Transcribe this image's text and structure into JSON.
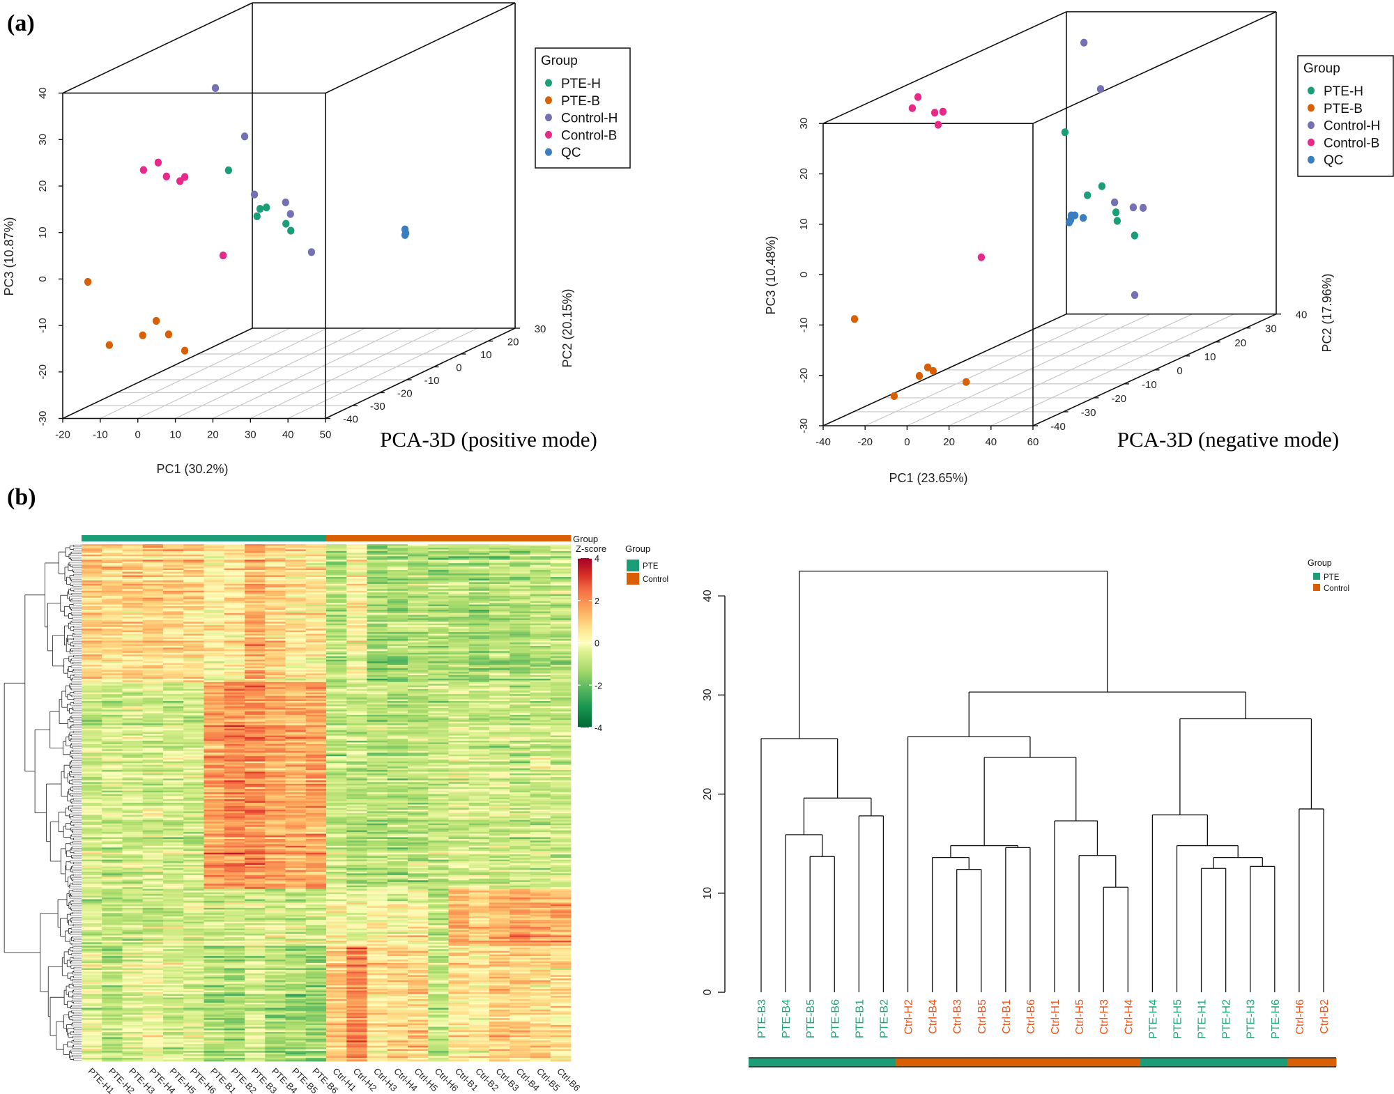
{
  "panel_labels": {
    "a": "(a)",
    "b": "(b)"
  },
  "colors": {
    "PTE-H": "#1b9e77",
    "PTE-B": "#d95f02",
    "Control-H": "#7570b3",
    "Control-B": "#e7298a",
    "QC": "#3b7ec0",
    "PTE": "#1b9e77",
    "Control": "#d95f02",
    "PTE_label": "#1fa57a",
    "Control_label": "#e8561c"
  },
  "chart_data": [
    {
      "type": "scatter3d",
      "title": "PCA-3D (positive mode)",
      "xlabel": "PC1 (30.2%)",
      "ylabel": "PC2 (20.15%)",
      "zlabel": "PC3 (10.87%)",
      "xlim": [
        -20,
        50
      ],
      "ylim": [
        -40,
        30
      ],
      "zlim": [
        -30,
        40
      ],
      "xticks": [
        -20,
        -10,
        0,
        10,
        20,
        30,
        40,
        50
      ],
      "yticks": [
        -40,
        -30,
        -20,
        -10,
        0,
        10,
        20,
        30
      ],
      "zticks": [
        -30,
        -20,
        -10,
        0,
        10,
        20,
        30,
        40
      ],
      "grid": "floor",
      "legend": {
        "title": "Group",
        "position": "top-right"
      },
      "series": [
        {
          "name": "PTE-H",
          "points": [
            [
              -4.7,
              0,
              12.3
            ],
            [
              3.7,
              0,
              4.0
            ],
            [
              5.4,
              0,
              4.3
            ],
            [
              2.9,
              0,
              2.4
            ],
            [
              10.6,
              0,
              0.8
            ],
            [
              11.9,
              0,
              -0.7
            ]
          ]
        },
        {
          "name": "PTE-B",
          "points": [
            [
              -16.9,
              -35,
              -2.0
            ],
            [
              -11.2,
              -35,
              -15.6
            ],
            [
              -2.3,
              -35,
              -13.5
            ],
            [
              1.3,
              -35,
              -10.4
            ],
            [
              4.6,
              -35,
              -13.3
            ],
            [
              8.9,
              -35,
              -16.8
            ]
          ]
        },
        {
          "name": "Control-H",
          "points": [
            [
              -11.8,
              5,
              28.6
            ],
            [
              -4.0,
              5,
              18.2
            ],
            [
              -1.4,
              5,
              5.7
            ],
            [
              6.9,
              5,
              4.0
            ],
            [
              8.2,
              5,
              1.5
            ],
            [
              13.8,
              5,
              -6.7
            ]
          ]
        },
        {
          "name": "Control-B",
          "points": [
            [
              -9.3,
              -25,
              19.3
            ],
            [
              -5.4,
              -25,
              20.9
            ],
            [
              -3.2,
              -25,
              17.9
            ],
            [
              0.4,
              -25,
              16.9
            ],
            [
              1.7,
              -25,
              17.8
            ],
            [
              11.9,
              -25,
              0.9
            ]
          ]
        },
        {
          "name": "QC",
          "points": [
            [
              35.1,
              10,
              -3.2
            ],
            [
              35.3,
              10,
              -4.0
            ],
            [
              35.1,
              10,
              -4.4
            ]
          ]
        }
      ]
    },
    {
      "type": "scatter3d",
      "title": "PCA-3D (negative mode)",
      "xlabel": "PC1 (23.65%)",
      "ylabel": "PC2 (17.96%)",
      "zlabel": "PC3 (10.48%)",
      "xlim": [
        -40,
        60
      ],
      "ylim": [
        -40,
        40
      ],
      "zlim": [
        -30,
        30
      ],
      "xticks": [
        -40,
        -20,
        0,
        20,
        40,
        60
      ],
      "yticks": [
        -40,
        -30,
        -20,
        -10,
        0,
        10,
        20,
        30,
        40
      ],
      "zticks": [
        -30,
        -20,
        -10,
        0,
        10,
        20,
        30
      ],
      "grid": "floor",
      "legend": {
        "title": "Group",
        "position": "top-right"
      },
      "series": [
        {
          "name": "PTE-H",
          "points": [
            [
              2.8,
              10,
              14.4
            ],
            [
              20.4,
              10,
              3.7
            ],
            [
              13.5,
              10,
              1.9
            ],
            [
              27.1,
              10,
              -1.5
            ],
            [
              27.7,
              10,
              -3.2
            ],
            [
              36.0,
              10,
              -6.1
            ]
          ]
        },
        {
          "name": "PTE-B",
          "points": [
            [
              -32.3,
              -35,
              -10.2
            ],
            [
              2.6,
              -35,
              -19.8
            ],
            [
              5.2,
              -35,
              -20.5
            ],
            [
              -1.4,
              -35,
              -21.5
            ],
            [
              20.9,
              -35,
              -22.7
            ],
            [
              -13.4,
              -35,
              -25.5
            ]
          ]
        },
        {
          "name": "Control-H",
          "points": [
            [
              4.6,
              15,
              30.8
            ],
            [
              12.5,
              15,
              21.6
            ],
            [
              19.2,
              15,
              -0.9
            ],
            [
              28.1,
              15,
              -1.9
            ],
            [
              32.8,
              15,
              -2.0
            ],
            [
              28.8,
              15,
              -19.3
            ]
          ]
        },
        {
          "name": "Control-B",
          "points": [
            [
              -23.8,
              -20,
              29.7
            ],
            [
              -26.5,
              -20,
              27.5
            ],
            [
              -15.8,
              -20,
              26.6
            ],
            [
              -11.9,
              -20,
              26.8
            ],
            [
              -14.2,
              -20,
              24.2
            ],
            [
              6.4,
              -20,
              -2.1
            ]
          ]
        },
        {
          "name": "QC",
          "points": [
            [
              5.8,
              10,
              -2.1
            ],
            [
              7.5,
              10,
              -2.1
            ],
            [
              4.8,
              10,
              -3.5
            ],
            [
              11.5,
              10,
              -2.6
            ],
            [
              5.5,
              10,
              -3.0
            ]
          ]
        }
      ]
    },
    {
      "type": "heatmap",
      "columns": [
        "PTE-H1",
        "PTE-H2",
        "PTE-H3",
        "PTE-H4",
        "PTE-H5",
        "PTE-H6",
        "PTE-B1",
        "PTE-B2",
        "PTE-B3",
        "PTE-B4",
        "PTE-B5",
        "PTE-B6",
        "Ctrl-H1",
        "Ctrl-H2",
        "Ctrl-H3",
        "Ctrl-H4",
        "Ctrl-H5",
        "Ctrl-H6",
        "Ctrl-B1",
        "Ctrl-B2",
        "Ctrl-B3",
        "Ctrl-B4",
        "Ctrl-B5",
        "Ctrl-B6"
      ],
      "column_groups": [
        "PTE",
        "PTE",
        "PTE",
        "PTE",
        "PTE",
        "PTE",
        "PTE",
        "PTE",
        "PTE",
        "PTE",
        "PTE",
        "PTE",
        "Control",
        "Control",
        "Control",
        "Control",
        "Control",
        "Control",
        "Control",
        "Control",
        "Control",
        "Control",
        "Control",
        "Control"
      ],
      "annotation_label": "Group",
      "colorbar": {
        "title": "Z-score",
        "range": [
          -4,
          4
        ],
        "ticks": [
          4,
          2,
          0,
          -2,
          -4
        ],
        "palette": "green-yellow-red"
      },
      "legend": {
        "title": "Group",
        "entries": [
          "PTE",
          "Control"
        ]
      },
      "row_dendrogram": true,
      "row_clusters": [
        {
          "rows": 80,
          "mean_z": [
            0.9,
            0.8,
            0.9,
            1.0,
            0.8,
            0.8,
            0.3,
            0.6,
            1.5,
            0.9,
            0.6,
            0.5,
            -1.0,
            0.2,
            -1.2,
            -1.1,
            -0.9,
            -1.0,
            -1.0,
            -1.2,
            -1.0,
            -1.0,
            -0.9,
            -0.8
          ]
        },
        {
          "rows": 120,
          "mean_z": [
            -0.6,
            -0.6,
            -0.6,
            -0.6,
            -0.6,
            -0.6,
            1.8,
            2.0,
            2.0,
            1.6,
            1.5,
            1.6,
            -0.8,
            -0.8,
            -0.9,
            -0.9,
            -0.9,
            -0.8,
            -0.6,
            -0.6,
            -0.6,
            -0.7,
            -0.6,
            -0.7
          ]
        },
        {
          "rows": 33,
          "mean_z": [
            -0.7,
            -0.9,
            -0.8,
            -0.7,
            -0.7,
            -0.6,
            -0.5,
            -0.7,
            -0.4,
            -0.6,
            -0.6,
            -0.6,
            0.3,
            -0.2,
            0.2,
            -0.1,
            0.3,
            -0.9,
            1.5,
            0.8,
            1.4,
            1.6,
            1.6,
            1.5
          ]
        },
        {
          "rows": 67,
          "mean_z": [
            -0.3,
            -1.0,
            -0.4,
            -0.2,
            -0.5,
            -0.4,
            -1.0,
            -1.1,
            -0.6,
            -1.2,
            -1.3,
            -1.4,
            1.0,
            2.0,
            0.6,
            0.8,
            0.8,
            -0.9,
            0.5,
            0.3,
            0.9,
            0.9,
            0.8,
            0.6
          ]
        }
      ]
    },
    {
      "type": "dendrogram",
      "ylim": [
        0,
        42.5
      ],
      "yticks": [
        0,
        10,
        20,
        30,
        40
      ],
      "legend": {
        "title": "Group",
        "entries": [
          "PTE",
          "Control"
        ],
        "position": "top-right"
      },
      "leaves": [
        {
          "label": "PTE-B3",
          "group": "PTE"
        },
        {
          "label": "PTE-B4",
          "group": "PTE"
        },
        {
          "label": "PTE-B5",
          "group": "PTE"
        },
        {
          "label": "PTE-B6",
          "group": "PTE"
        },
        {
          "label": "PTE-B1",
          "group": "PTE"
        },
        {
          "label": "PTE-B2",
          "group": "PTE"
        },
        {
          "label": "Ctrl-H2",
          "group": "Control"
        },
        {
          "label": "Ctrl-B4",
          "group": "Control"
        },
        {
          "label": "Ctrl-B3",
          "group": "Control"
        },
        {
          "label": "Ctrl-B5",
          "group": "Control"
        },
        {
          "label": "Ctrl-B1",
          "group": "Control"
        },
        {
          "label": "Ctrl-B6",
          "group": "Control"
        },
        {
          "label": "Ctrl-H1",
          "group": "Control"
        },
        {
          "label": "Ctrl-H5",
          "group": "Control"
        },
        {
          "label": "Ctrl-H3",
          "group": "Control"
        },
        {
          "label": "Ctrl-H4",
          "group": "Control"
        },
        {
          "label": "PTE-H4",
          "group": "PTE"
        },
        {
          "label": "PTE-H5",
          "group": "PTE"
        },
        {
          "label": "PTE-H1",
          "group": "PTE"
        },
        {
          "label": "PTE-H2",
          "group": "PTE"
        },
        {
          "label": "PTE-H3",
          "group": "PTE"
        },
        {
          "label": "PTE-H6",
          "group": "PTE"
        },
        {
          "label": "Ctrl-H6",
          "group": "Control"
        },
        {
          "label": "Ctrl-B2",
          "group": "Control"
        }
      ],
      "tree": {
        "h": 42.5,
        "c": [
          {
            "h": 25.6,
            "c": [
              0,
              {
                "h": 19.6,
                "c": [
                  {
                    "h": 15.9,
                    "c": [
                      1,
                      {
                        "h": 13.7,
                        "c": [
                          2,
                          3
                        ]
                      }
                    ]
                  },
                  {
                    "h": 17.8,
                    "c": [
                      4,
                      5
                    ]
                  }
                ]
              }
            ]
          },
          {
            "h": 30.3,
            "c": [
              {
                "h": 25.8,
                "c": [
                  6,
                  {
                    "h": 23.7,
                    "c": [
                      {
                        "h": 14.8,
                        "c": [
                          {
                            "h": 13.6,
                            "c": [
                              7,
                              {
                                "h": 12.4,
                                "c": [
                                  8,
                                  9
                                ]
                              }
                            ]
                          },
                          {
                            "h": 14.6,
                            "c": [
                              10,
                              11
                            ]
                          }
                        ]
                      },
                      {
                        "h": 17.3,
                        "c": [
                          12,
                          {
                            "h": 13.8,
                            "c": [
                              13,
                              {
                                "h": 10.6,
                                "c": [
                                  14,
                                  15
                                ]
                              }
                            ]
                          }
                        ]
                      }
                    ]
                  }
                ]
              },
              {
                "h": 27.6,
                "c": [
                  {
                    "h": 17.9,
                    "c": [
                      16,
                      {
                        "h": 14.8,
                        "c": [
                          17,
                          {
                            "h": 13.6,
                            "c": [
                              {
                                "h": 12.5,
                                "c": [
                                  18,
                                  19
                                ]
                              },
                              {
                                "h": 12.7,
                                "c": [
                                  20,
                                  21
                                ]
                              }
                            ]
                          }
                        ]
                      }
                    ]
                  },
                  {
                    "h": 18.5,
                    "c": [
                      22,
                      23
                    ]
                  }
                ]
              }
            ]
          }
        ]
      }
    }
  ]
}
